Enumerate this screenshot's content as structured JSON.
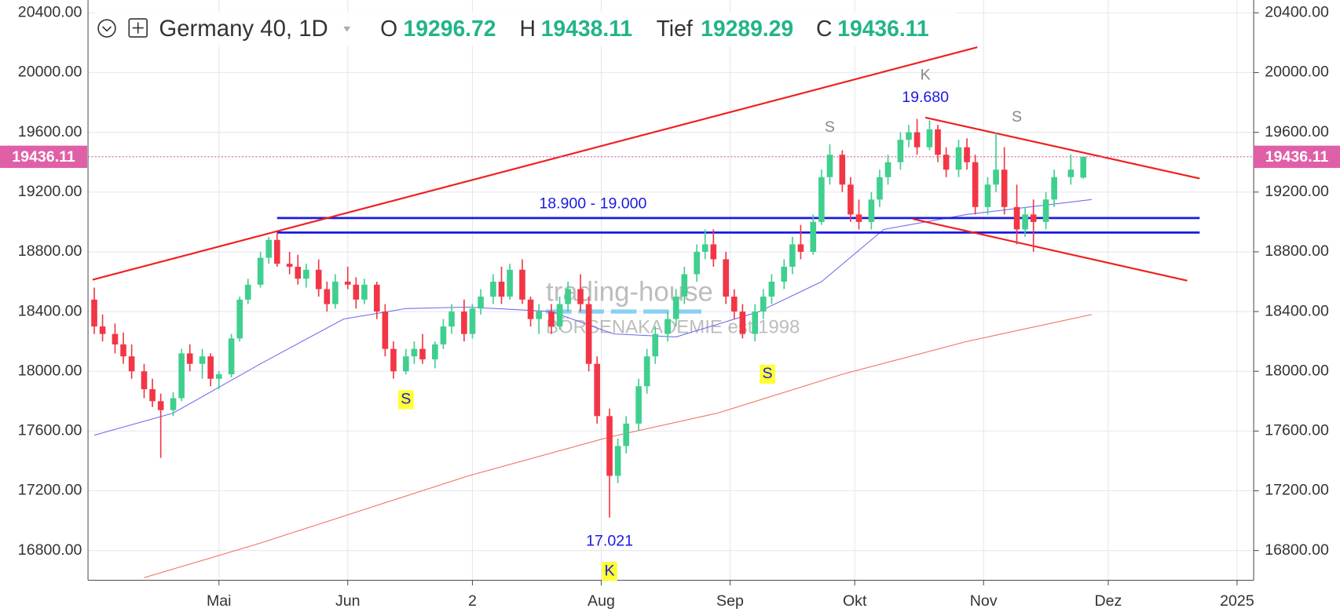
{
  "chart_data": {
    "type": "candlestick",
    "title": "Germany 40, 1D",
    "ohlc_header": [
      {
        "label": "O",
        "value": 19296.72
      },
      {
        "label": "H",
        "value": 19438.11
      },
      {
        "label": "Tief",
        "value": 19289.29
      },
      {
        "label": "C",
        "value": 19436.11
      }
    ],
    "price_line": 19436.11,
    "up_color": "#3fcf8e",
    "down_color": "#f23645",
    "grid": true,
    "xlim": [
      -1.5,
      279
    ],
    "xticks": [
      {
        "value": 30,
        "label": "Mai"
      },
      {
        "value": 61,
        "label": "Jun"
      },
      {
        "value": 91,
        "label": "2"
      },
      {
        "value": 122,
        "label": "Aug"
      },
      {
        "value": 153,
        "label": "Sep"
      },
      {
        "value": 183,
        "label": "Okt"
      },
      {
        "value": 214,
        "label": "Nov"
      },
      {
        "value": 244,
        "label": "Dez"
      },
      {
        "value": 275,
        "label": "2025"
      }
    ],
    "ylim": [
      16601,
      20486
    ],
    "yticks": [
      {
        "value": 16800,
        "label": "16800.00"
      },
      {
        "value": 17200,
        "label": "17200.00"
      },
      {
        "value": 17600,
        "label": "17600.00"
      },
      {
        "value": 18000,
        "label": "18000.00"
      },
      {
        "value": 18400,
        "label": "18400.00"
      },
      {
        "value": 18800,
        "label": "18800.00"
      },
      {
        "value": 19200,
        "label": "19200.00"
      },
      {
        "value": 19600,
        "label": "19600.00"
      },
      {
        "value": 20000,
        "label": "20000.00"
      },
      {
        "value": 20400,
        "label": "20400.00"
      }
    ],
    "candles": [
      [
        0,
        18480,
        18560,
        18250,
        18300
      ],
      [
        2,
        18300,
        18380,
        18200,
        18250
      ],
      [
        5,
        18250,
        18320,
        18120,
        18180
      ],
      [
        7,
        18180,
        18260,
        18050,
        18100
      ],
      [
        9,
        18100,
        18180,
        17950,
        18000
      ],
      [
        12,
        18000,
        18050,
        17820,
        17880
      ],
      [
        14,
        17880,
        17950,
        17760,
        17800
      ],
      [
        16,
        17800,
        17850,
        17420,
        17740
      ],
      [
        19,
        17740,
        17860,
        17700,
        17820
      ],
      [
        21,
        17820,
        18150,
        17800,
        18120
      ],
      [
        23,
        18120,
        18180,
        18000,
        18050
      ],
      [
        26,
        18050,
        18150,
        17950,
        18100
      ],
      [
        28,
        18100,
        18120,
        17900,
        17950
      ],
      [
        30,
        17950,
        18000,
        17880,
        17980
      ],
      [
        33,
        17980,
        18250,
        17960,
        18220
      ],
      [
        35,
        18220,
        18500,
        18200,
        18480
      ],
      [
        37,
        18480,
        18620,
        18450,
        18580
      ],
      [
        40,
        18580,
        18800,
        18560,
        18760
      ],
      [
        42,
        18760,
        18900,
        18720,
        18880
      ],
      [
        44,
        18880,
        18930,
        18700,
        18720
      ],
      [
        47,
        18720,
        18800,
        18650,
        18700
      ],
      [
        49,
        18700,
        18780,
        18580,
        18620
      ],
      [
        51,
        18620,
        18720,
        18560,
        18680
      ],
      [
        54,
        18680,
        18750,
        18500,
        18550
      ],
      [
        56,
        18550,
        18600,
        18400,
        18450
      ],
      [
        58,
        18450,
        18650,
        18420,
        18600
      ],
      [
        61,
        18600,
        18700,
        18550,
        18580
      ],
      [
        63,
        18580,
        18630,
        18420,
        18480
      ],
      [
        65,
        18480,
        18620,
        18450,
        18580
      ],
      [
        68,
        18580,
        18600,
        18350,
        18400
      ],
      [
        70,
        18400,
        18450,
        18100,
        18150
      ],
      [
        72,
        18150,
        18200,
        17950,
        18000
      ],
      [
        75,
        18000,
        18150,
        17980,
        18100
      ],
      [
        77,
        18100,
        18200,
        18050,
        18150
      ],
      [
        79,
        18150,
        18250,
        18050,
        18080
      ],
      [
        82,
        18080,
        18200,
        18020,
        18180
      ],
      [
        84,
        18180,
        18350,
        18150,
        18300
      ],
      [
        86,
        18300,
        18450,
        18250,
        18400
      ],
      [
        89,
        18400,
        18480,
        18200,
        18250
      ],
      [
        91,
        18250,
        18450,
        18220,
        18420
      ],
      [
        93,
        18420,
        18550,
        18380,
        18500
      ],
      [
        96,
        18500,
        18650,
        18450,
        18600
      ],
      [
        98,
        18600,
        18700,
        18450,
        18500
      ],
      [
        100,
        18500,
        18720,
        18480,
        18680
      ],
      [
        103,
        18680,
        18750,
        18450,
        18480
      ],
      [
        105,
        18480,
        18500,
        18300,
        18350
      ],
      [
        107,
        18350,
        18450,
        18250,
        18400
      ],
      [
        110,
        18400,
        18450,
        18250,
        18300
      ],
      [
        112,
        18300,
        18500,
        18280,
        18450
      ],
      [
        114,
        18450,
        18600,
        18400,
        18550
      ],
      [
        117,
        18550,
        18650,
        18400,
        18450
      ],
      [
        119,
        18450,
        18500,
        18000,
        18050
      ],
      [
        121,
        18050,
        18100,
        17650,
        17700
      ],
      [
        124,
        17700,
        17750,
        17021,
        17300
      ],
      [
        126,
        17300,
        17550,
        17250,
        17500
      ],
      [
        128,
        17500,
        17700,
        17450,
        17650
      ],
      [
        131,
        17650,
        17950,
        17600,
        17900
      ],
      [
        133,
        17900,
        18150,
        17850,
        18100
      ],
      [
        135,
        18100,
        18300,
        18050,
        18250
      ],
      [
        138,
        18250,
        18400,
        18200,
        18350
      ],
      [
        140,
        18350,
        18550,
        18300,
        18500
      ],
      [
        142,
        18500,
        18700,
        18450,
        18650
      ],
      [
        145,
        18650,
        18850,
        18600,
        18800
      ],
      [
        147,
        18800,
        18950,
        18750,
        18850
      ],
      [
        149,
        18850,
        18950,
        18700,
        18750
      ],
      [
        152,
        18750,
        18800,
        18450,
        18500
      ],
      [
        154,
        18500,
        18550,
        18350,
        18400
      ],
      [
        156,
        18400,
        18450,
        18220,
        18250
      ],
      [
        159,
        18250,
        18450,
        18200,
        18400
      ],
      [
        161,
        18400,
        18550,
        18350,
        18500
      ],
      [
        163,
        18500,
        18650,
        18450,
        18600
      ],
      [
        166,
        18600,
        18750,
        18550,
        18700
      ],
      [
        168,
        18700,
        18900,
        18650,
        18850
      ],
      [
        170,
        18850,
        18980,
        18750,
        18800
      ],
      [
        173,
        18800,
        19050,
        18780,
        19000
      ],
      [
        175,
        19000,
        19350,
        18980,
        19300
      ],
      [
        177,
        19300,
        19520,
        19250,
        19450
      ],
      [
        180,
        19450,
        19480,
        19200,
        19250
      ],
      [
        182,
        19250,
        19300,
        19000,
        19050
      ],
      [
        184,
        19050,
        19150,
        18950,
        19000
      ],
      [
        187,
        19000,
        19200,
        18950,
        19150
      ],
      [
        189,
        19150,
        19350,
        19100,
        19300
      ],
      [
        191,
        19300,
        19450,
        19250,
        19400
      ],
      [
        194,
        19400,
        19600,
        19350,
        19550
      ],
      [
        196,
        19550,
        19650,
        19500,
        19600
      ],
      [
        198,
        19600,
        19690,
        19450,
        19500
      ],
      [
        201,
        19500,
        19680,
        19480,
        19620
      ],
      [
        203,
        19620,
        19650,
        19400,
        19450
      ],
      [
        205,
        19450,
        19500,
        19300,
        19350
      ],
      [
        208,
        19350,
        19550,
        19300,
        19500
      ],
      [
        210,
        19500,
        19560,
        19350,
        19400
      ],
      [
        212,
        19400,
        19450,
        19050,
        19100
      ],
      [
        215,
        19100,
        19300,
        19050,
        19250
      ],
      [
        217,
        19250,
        19600,
        19200,
        19350
      ],
      [
        219,
        19350,
        19500,
        19050,
        19100
      ],
      [
        222,
        19100,
        19250,
        18850,
        18950
      ],
      [
        224,
        18950,
        19100,
        18900,
        19050
      ],
      [
        226,
        19050,
        19150,
        18800,
        19000
      ],
      [
        229,
        19000,
        19200,
        18950,
        19150
      ],
      [
        231,
        19150,
        19350,
        19100,
        19300
      ],
      [
        235,
        19300,
        19450,
        19250,
        19350
      ],
      [
        238,
        19296.72,
        19438.11,
        19289.29,
        19436.11
      ]
    ],
    "series": [
      {
        "color": "#6f6ff0",
        "x": [
          0,
          19,
          40,
          60,
          75,
          90,
          110,
          125,
          140,
          160,
          175,
          190,
          210,
          225,
          240
        ],
        "values": [
          17572,
          17720,
          18050,
          18350,
          18420,
          18430,
          18400,
          18250,
          18230,
          18400,
          18600,
          18950,
          19050,
          19100,
          19150
        ]
      },
      {
        "color": "#f07060",
        "x": [
          12,
          40,
          60,
          90,
          124,
          150,
          180,
          210,
          240
        ],
        "values": [
          16618,
          16850,
          17030,
          17300,
          17560,
          17720,
          17980,
          18200,
          18380
        ]
      }
    ],
    "trend_lines": [
      {
        "x": [
          -0.4,
          212.5
        ],
        "y": [
          18613,
          20170
        ]
      },
      {
        "x": [
          200,
          266
        ],
        "y": [
          19699,
          19291
        ]
      },
      {
        "x": [
          197,
          263
        ],
        "y": [
          19020,
          18607
        ]
      }
    ],
    "levels": [
      19026,
      18929
    ],
    "level_label": "18.900 - 19.000",
    "annotations": {
      "k_top": "K",
      "top_value": "19.680",
      "s_left_top": "S",
      "s_right_top": "S",
      "s_june": "S",
      "s_sep": "S",
      "k_bottom": "K",
      "bottom_value": "17.021"
    },
    "watermark": {
      "line1": "trading-house",
      "line2": "BÖRSENAKADEMIE est 1998"
    }
  }
}
